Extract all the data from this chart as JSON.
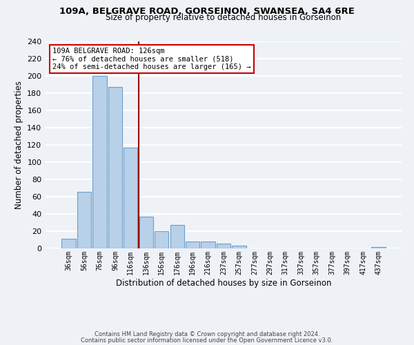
{
  "title": "109A, BELGRAVE ROAD, GORSEINON, SWANSEA, SA4 6RE",
  "subtitle": "Size of property relative to detached houses in Gorseinon",
  "xlabel": "Distribution of detached houses by size in Gorseinon",
  "ylabel": "Number of detached properties",
  "bar_labels": [
    "36sqm",
    "56sqm",
    "76sqm",
    "96sqm",
    "116sqm",
    "136sqm",
    "156sqm",
    "176sqm",
    "196sqm",
    "216sqm",
    "237sqm",
    "257sqm",
    "277sqm",
    "297sqm",
    "317sqm",
    "337sqm",
    "357sqm",
    "377sqm",
    "397sqm",
    "417sqm",
    "437sqm"
  ],
  "bar_values": [
    11,
    66,
    200,
    187,
    117,
    37,
    20,
    27,
    8,
    8,
    6,
    3,
    0,
    0,
    0,
    0,
    0,
    0,
    0,
    0,
    2
  ],
  "bar_color": "#b8d0e8",
  "bar_edge_color": "#6a9fc8",
  "ylim": [
    0,
    240
  ],
  "yticks": [
    0,
    20,
    40,
    60,
    80,
    100,
    120,
    140,
    160,
    180,
    200,
    220,
    240
  ],
  "property_label": "109A BELGRAVE ROAD: 126sqm",
  "annotation_line1": "← 76% of detached houses are smaller (518)",
  "annotation_line2": "24% of semi-detached houses are larger (165) →",
  "vline_color": "#990000",
  "annotation_box_facecolor": "#ffffff",
  "annotation_box_edgecolor": "#cc0000",
  "footer_line1": "Contains HM Land Registry data © Crown copyright and database right 2024.",
  "footer_line2": "Contains public sector information licensed under the Open Government Licence v3.0.",
  "bg_color": "#eef2f7",
  "plot_bg_color": "#eef2f7",
  "grid_color": "#ffffff"
}
